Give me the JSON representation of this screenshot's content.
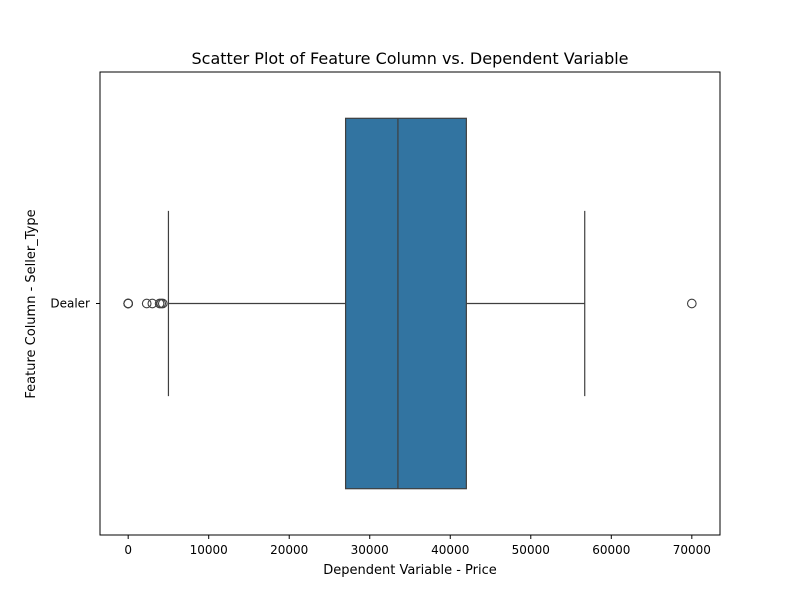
{
  "chart_data": {
    "type": "box",
    "title": "Scatter Plot of Feature Column vs. Dependent Variable",
    "xlabel": "Dependent Variable - Price",
    "ylabel": "Feature Column - Seller_Type",
    "xlim": [
      -3500,
      73500
    ],
    "xticks": [
      0,
      10000,
      20000,
      30000,
      40000,
      50000,
      60000,
      70000
    ],
    "xtick_labels": [
      "0",
      "10000",
      "20000",
      "30000",
      "40000",
      "50000",
      "60000",
      "70000"
    ],
    "grid": false,
    "categories": [
      "Dealer"
    ],
    "boxes": [
      {
        "category": "Dealer",
        "whisker_low": 5000,
        "q1": 27000,
        "median": 33500,
        "q3": 42000,
        "whisker_high": 56700,
        "outliers": [
          0,
          0,
          0,
          2300,
          3000,
          3900,
          4100,
          4300,
          70000
        ]
      }
    ],
    "colors": {
      "box": "#3274a1",
      "line": "#3f3f3f"
    }
  }
}
